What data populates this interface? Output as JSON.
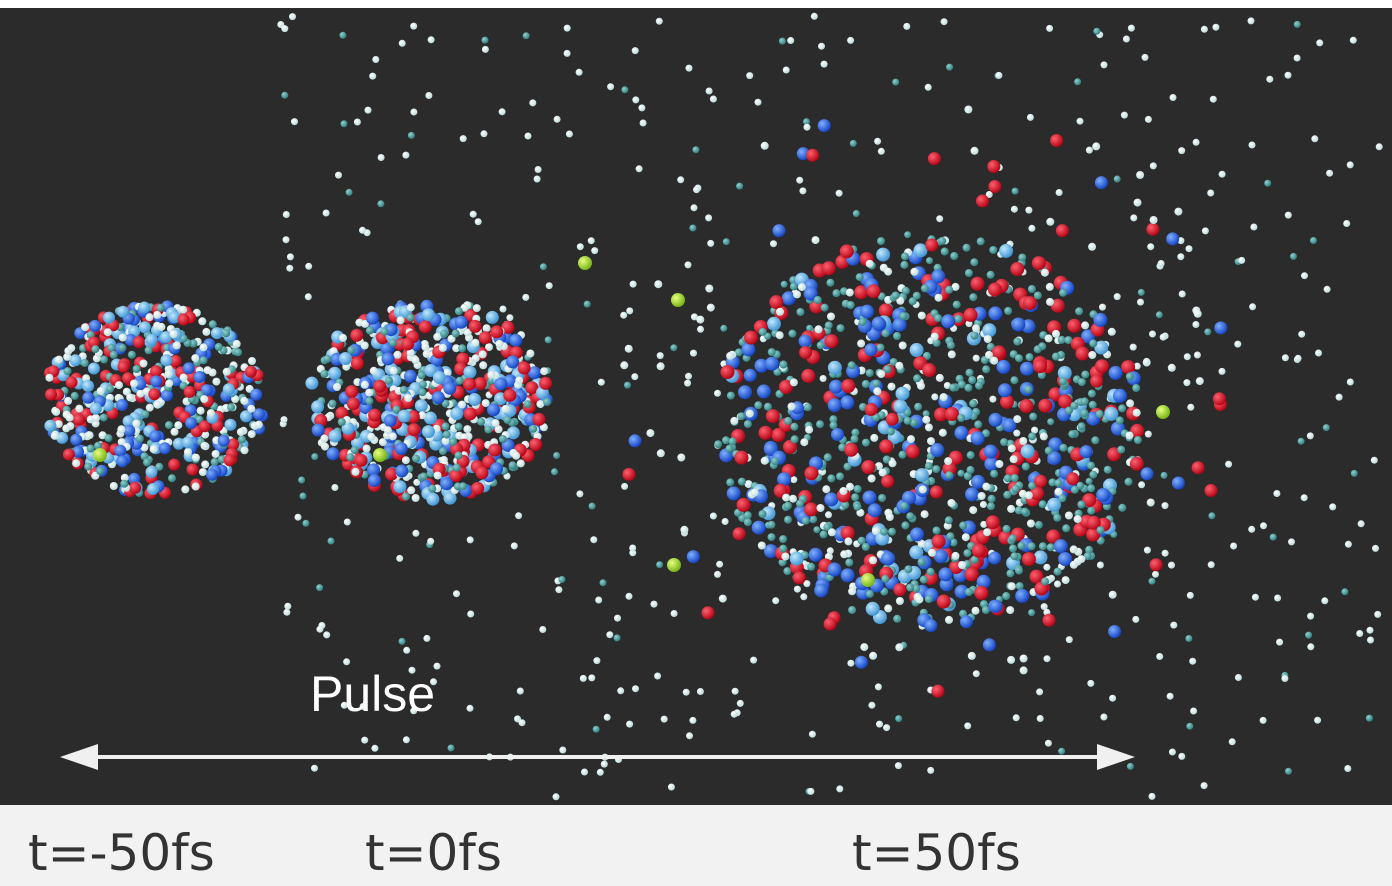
{
  "figure": {
    "pulse_label": "Pulse",
    "time_labels": [
      "t=-50fs",
      "t=0fs",
      "t=50fs"
    ]
  }
}
